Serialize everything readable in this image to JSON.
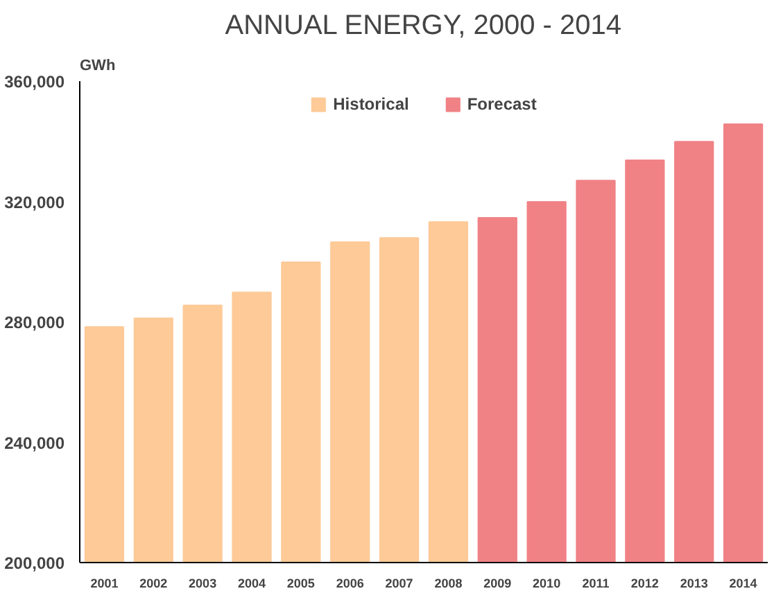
{
  "chart_data": {
    "type": "bar",
    "title": "ANNUAL ENERGY, 2000 - 2014",
    "ylabel": "GWh",
    "categories": [
      "2001",
      "2002",
      "2003",
      "2004",
      "2005",
      "2006",
      "2007",
      "2008",
      "2009",
      "2010",
      "2011",
      "2012",
      "2013",
      "2014"
    ],
    "series": [
      {
        "name": "Historical",
        "color": "#fdca98",
        "values": [
          278300,
          281200,
          285500,
          289800,
          299800,
          306500,
          307900,
          313200,
          null,
          null,
          null,
          null,
          null,
          null
        ]
      },
      {
        "name": "Forecast",
        "color": "#f08286",
        "values": [
          null,
          null,
          null,
          null,
          null,
          null,
          null,
          null,
          314600,
          319900,
          327000,
          333700,
          339900,
          345700
        ]
      }
    ],
    "ylim": [
      200000,
      360000
    ],
    "yticks": [
      {
        "value": 200000,
        "label": "200,000"
      },
      {
        "value": 240000,
        "label": "240,000"
      },
      {
        "value": 280000,
        "label": "280,000"
      },
      {
        "value": 320000,
        "label": "320,000"
      },
      {
        "value": 360000,
        "label": "360,000"
      }
    ],
    "grid": false,
    "legend": "top"
  }
}
